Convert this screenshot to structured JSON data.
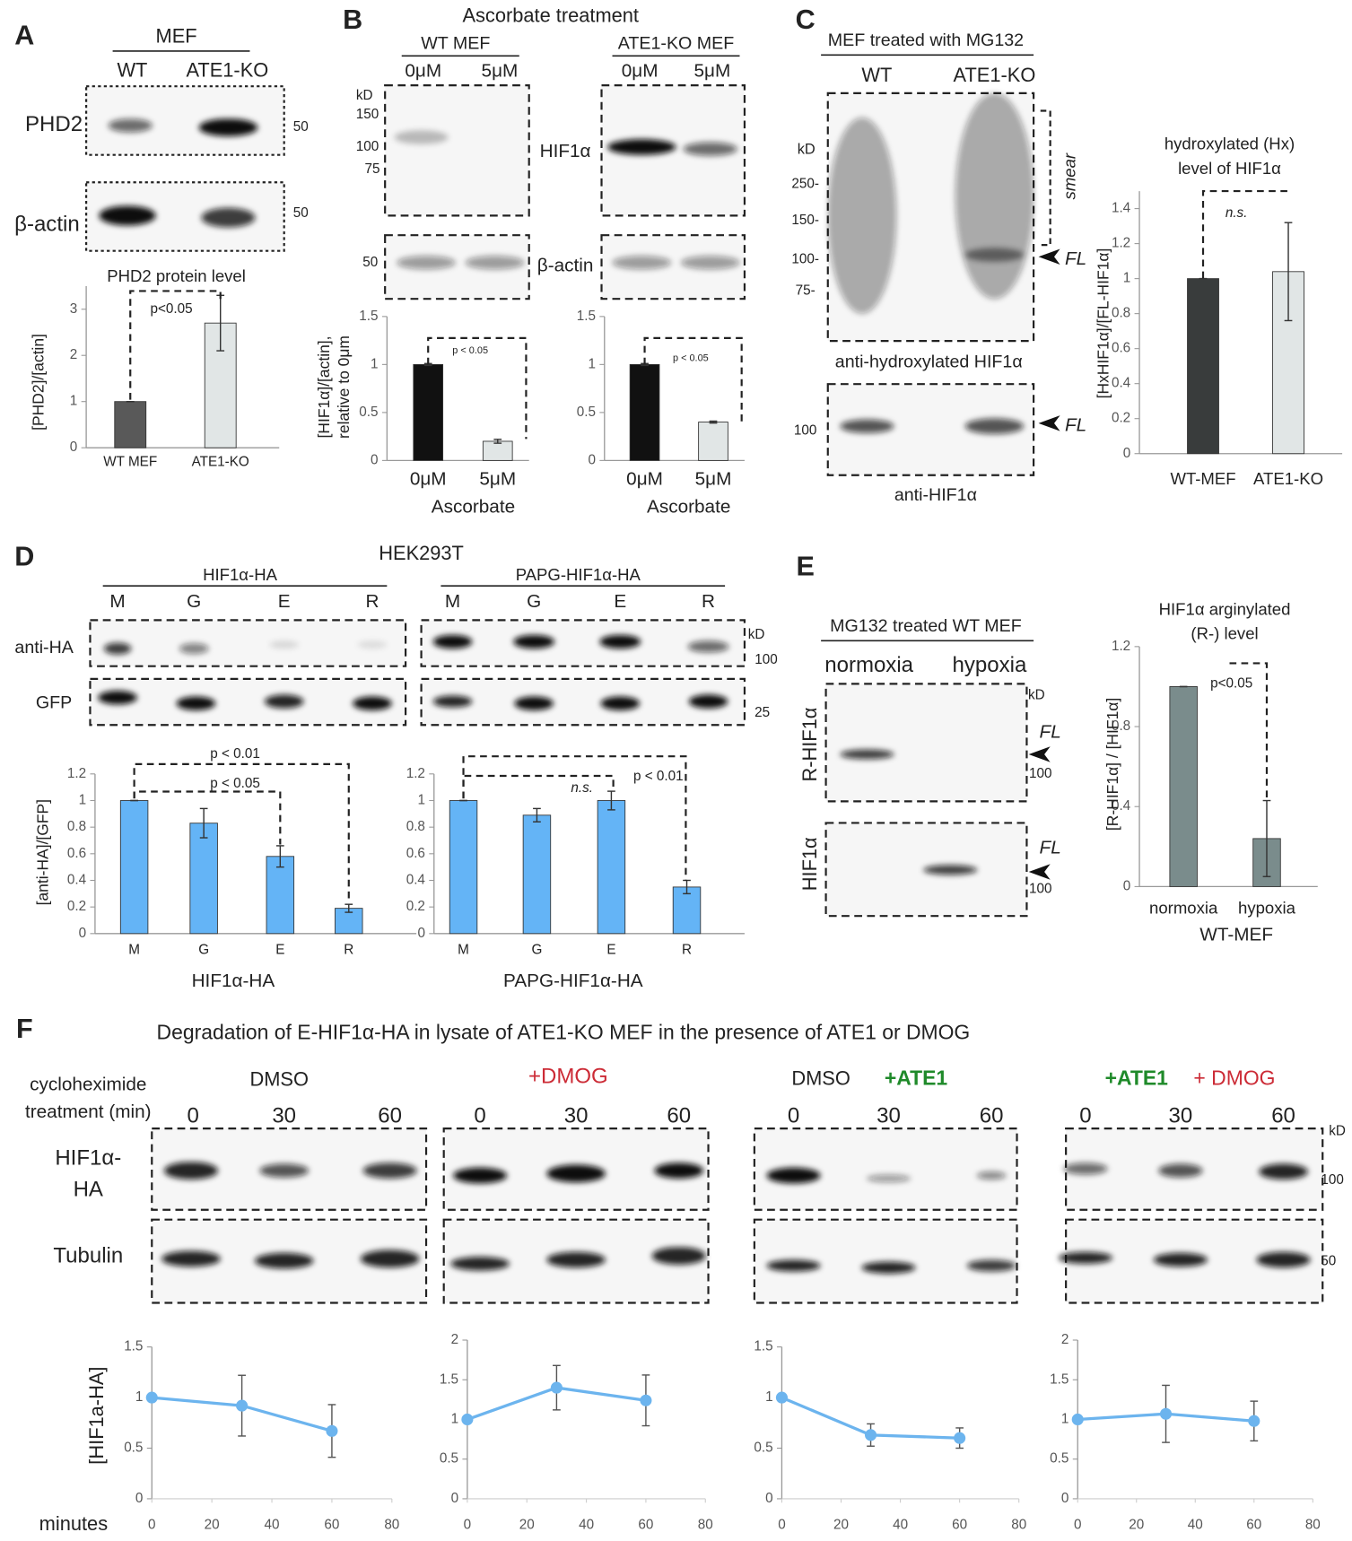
{
  "panels": {
    "A": {
      "label": "A",
      "header": "MEF",
      "lanes": [
        "WT",
        "ATE1-KO"
      ],
      "blots": [
        "PHD2",
        "β-actin"
      ],
      "markers": [
        "50",
        "50"
      ]
    },
    "B": {
      "label": "B",
      "header": "Ascorbate treatment",
      "groups": [
        "WT MEF",
        "ATE1-KO MEF"
      ],
      "lanes": [
        "0μM",
        "5μM",
        "0μM",
        "5μM"
      ],
      "kd": "kD",
      "markers": [
        "150",
        "100",
        "75",
        "50"
      ],
      "blots": [
        "HIF1α",
        "β-actin"
      ]
    },
    "C": {
      "label": "C",
      "header": "MEF treated with MG132",
      "lanes": [
        "WT",
        "ATE1-KO"
      ],
      "kd": "kD",
      "markers": [
        "250-",
        "150-",
        "100-",
        "75-",
        "100"
      ],
      "smear": "smear",
      "fl": [
        "FL",
        "FL"
      ],
      "blots": [
        "anti-hydroxylated HIF1α",
        "anti-HIF1α"
      ]
    },
    "D": {
      "label": "D",
      "header": "HEK293T",
      "groups": [
        "HIF1α-HA",
        "PAPG-HIF1α-HA"
      ],
      "lanes": [
        "M",
        "G",
        "E",
        "R",
        "M",
        "G",
        "E",
        "R"
      ],
      "kd": "kD",
      "markers": [
        "100",
        "25"
      ],
      "blots": [
        "anti-HA",
        "GFP"
      ]
    },
    "E": {
      "label": "E",
      "header": "MG132 treated WT MEF",
      "lanes": [
        "normoxia",
        "hypoxia"
      ],
      "kd": "kD",
      "blots": [
        "R-HIF1α",
        "HIF1α"
      ],
      "fl": [
        "FL",
        "FL"
      ],
      "markers": [
        "100",
        "100"
      ]
    },
    "F": {
      "label": "F",
      "title": "Degradation of E-HIF1α-HA in lysate of ATE1-KO MEF in the presence of ATE1 or DMOG",
      "treatment": [
        "cycloheximide",
        "treatment (min)"
      ],
      "conditions": [
        "DMSO",
        "+DMOG",
        "DMSO",
        "+ATE1",
        "+ATE1",
        "+ DMOG"
      ],
      "lanes": [
        "0",
        "30",
        "60",
        "0",
        "30",
        "60",
        "0",
        "30",
        "60",
        "0",
        "30",
        "60"
      ],
      "kd": "kD",
      "markers": [
        "100",
        "50"
      ],
      "blots": [
        "HIF1α-",
        "HA",
        "Tubulin"
      ]
    }
  },
  "chart_data": [
    {
      "type": "bar",
      "title": "PHD2 protein level",
      "ylabel": "[PHD2]/[actin]",
      "categories": [
        "WT MEF",
        "ATE1-KO"
      ],
      "values": [
        1,
        2.7
      ],
      "errors": [
        0,
        0.6
      ],
      "colors": [
        "#595959",
        "#e1e6e6"
      ],
      "ylim": [
        0,
        3.5
      ],
      "yticks": [
        0,
        1,
        2,
        3
      ],
      "annotations": [
        "p<0.05"
      ]
    },
    {
      "type": "bar",
      "ylabel": [
        "[HIF1α]/[actin],",
        "relative to 0μm"
      ],
      "categories": [
        "0μM",
        "5μM"
      ],
      "xlabel": "Ascorbate",
      "values": [
        1,
        0.2
      ],
      "errors": [
        0.01,
        0.02
      ],
      "colors": [
        "#111111",
        "#e1e6e6"
      ],
      "ylim": [
        0,
        1.5
      ],
      "yticks": [
        0,
        0.5,
        1,
        1.5
      ],
      "annotations": [
        "p < 0.05"
      ]
    },
    {
      "type": "bar",
      "categories": [
        "0μM",
        "5μM"
      ],
      "xlabel": "Ascorbate",
      "values": [
        1,
        0.4
      ],
      "errors": [
        0.01,
        0.01
      ],
      "colors": [
        "#111111",
        "#e1e6e6"
      ],
      "ylim": [
        0,
        1.5
      ],
      "yticks": [
        0,
        0.5,
        1,
        1.5
      ],
      "annotations": [
        "p < 0.05"
      ]
    },
    {
      "type": "bar",
      "title": [
        "hydroxylated (Hx)",
        "level of HIF1α"
      ],
      "ylabel": "[HxHIF1α]/[FL-HIF1α]",
      "categories": [
        "WT-MEF",
        "ATE1-KO"
      ],
      "values": [
        1,
        1.04
      ],
      "errors": [
        0,
        0.28
      ],
      "colors": [
        "#393c3c",
        "#e1e6e6"
      ],
      "ylim": [
        0,
        1.5
      ],
      "yticks": [
        0,
        0.2,
        0.4,
        0.6,
        0.8,
        1,
        1.2,
        1.4
      ],
      "annotations": [
        "n.s."
      ]
    },
    {
      "type": "bar",
      "ylabel": "[anti-HA]/[GFP]",
      "categories": [
        "M",
        "G",
        "E",
        "R"
      ],
      "xlabel": "HIF1α-HA",
      "values": [
        1,
        0.83,
        0.58,
        0.19
      ],
      "errors": [
        0,
        0.11,
        0.08,
        0.03
      ],
      "color": "#64b4f6",
      "ylim": [
        0,
        1.2
      ],
      "yticks": [
        0,
        0.2,
        0.4,
        0.6,
        0.8,
        1,
        1.2
      ],
      "annotations": [
        "p < 0.01",
        "p < 0.05"
      ]
    },
    {
      "type": "bar",
      "categories": [
        "M",
        "G",
        "E",
        "R"
      ],
      "xlabel": "PAPG-HIF1α-HA",
      "values": [
        1,
        0.89,
        1,
        0.35
      ],
      "errors": [
        0,
        0.05,
        0.07,
        0.05
      ],
      "color": "#64b4f6",
      "ylim": [
        0,
        1.2
      ],
      "yticks": [
        0,
        0.2,
        0.4,
        0.6,
        0.8,
        1,
        1.2
      ],
      "annotations": [
        "n.s.",
        "p < 0.01"
      ]
    },
    {
      "type": "bar",
      "title": [
        "HIF1α arginylated",
        "(R-) level"
      ],
      "ylabel": "[R-HIF1α] / [HIF1α]",
      "categories": [
        "normoxia",
        "hypoxia"
      ],
      "xlabel": "WT-MEF",
      "values": [
        1,
        0.24
      ],
      "errors": [
        0,
        0.19
      ],
      "color": "#7a8c8c",
      "ylim": [
        0,
        1.2
      ],
      "yticks": [
        0,
        0.4,
        0.8,
        1.2
      ],
      "annotations": [
        "p<0.05"
      ]
    },
    {
      "type": "line",
      "ylabel": "[HIF1a-HA]",
      "xlabel": "minutes",
      "x": [
        0,
        30,
        60
      ],
      "values": [
        1,
        0.92,
        0.67
      ],
      "errors": [
        0,
        0.3,
        0.26
      ],
      "color": "#6cb4ee",
      "xlim": [
        0,
        80
      ],
      "xticks": [
        0,
        20,
        40,
        60,
        80
      ],
      "ylim": [
        0,
        1.5
      ],
      "yticks": [
        0,
        0.5,
        1,
        1.5
      ]
    },
    {
      "type": "line",
      "x": [
        0,
        30,
        60
      ],
      "values": [
        1,
        1.4,
        1.24
      ],
      "errors": [
        0,
        0.28,
        0.32
      ],
      "color": "#6cb4ee",
      "xlim": [
        0,
        80
      ],
      "xticks": [
        0,
        20,
        40,
        60,
        80
      ],
      "ylim": [
        0,
        2
      ],
      "yticks": [
        0,
        0.5,
        1,
        1.5,
        2
      ]
    },
    {
      "type": "line",
      "x": [
        0,
        30,
        60
      ],
      "values": [
        1,
        0.63,
        0.6
      ],
      "errors": [
        0,
        0.11,
        0.1
      ],
      "color": "#6cb4ee",
      "xlim": [
        0,
        80
      ],
      "xticks": [
        0,
        20,
        40,
        60,
        80
      ],
      "ylim": [
        0,
        1.5
      ],
      "yticks": [
        0,
        0.5,
        1,
        1.5
      ]
    },
    {
      "type": "line",
      "x": [
        0,
        30,
        60
      ],
      "values": [
        1,
        1.07,
        0.98
      ],
      "errors": [
        0,
        0.36,
        0.25
      ],
      "color": "#6cb4ee",
      "xlim": [
        0,
        80
      ],
      "xticks": [
        0,
        20,
        40,
        60,
        80
      ],
      "ylim": [
        0,
        2
      ],
      "yticks": [
        0,
        0.5,
        1,
        1.5,
        2
      ]
    }
  ]
}
